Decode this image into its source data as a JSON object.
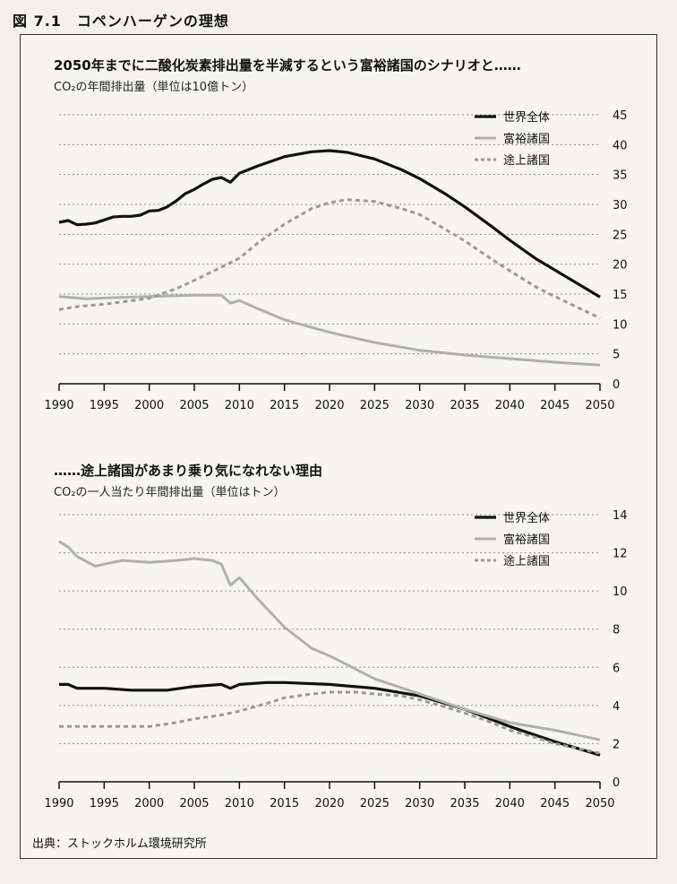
{
  "figure_title": "図 7.1　コペンハーゲンの理想",
  "source_note": "出典：ストックホルム環境研究所",
  "colors": {
    "world": "#111111",
    "rich": "#b0b0b0",
    "developing": "#9a9a9a"
  },
  "chart_data": [
    {
      "type": "line",
      "title": "2050年までに二酸化炭素排出量を半減するという富裕諸国のシナリオと……",
      "subtitle": "CO₂の年間排出量（単位は10億トン）",
      "xlabel": "",
      "ylabel": "",
      "xlim": [
        1990,
        2050
      ],
      "ylim": [
        0,
        45
      ],
      "x_ticks": [
        "1990",
        "1995",
        "2000",
        "2005",
        "2010",
        "2015",
        "2020",
        "2025",
        "2030",
        "2035",
        "2040",
        "2045",
        "2050"
      ],
      "y_ticks": [
        "45",
        "40",
        "35",
        "30",
        "25",
        "20",
        "15",
        "10",
        "5",
        "0"
      ],
      "grid": true,
      "legend_position": "top-right",
      "series": [
        {
          "name": "世界全体",
          "style": "solid-bold",
          "points": [
            [
              1990,
              27
            ],
            [
              1991,
              27.3
            ],
            [
              1992,
              26.6
            ],
            [
              1993,
              26.7
            ],
            [
              1994,
              26.9
            ],
            [
              1995,
              27.4
            ],
            [
              1996,
              27.9
            ],
            [
              1997,
              28
            ],
            [
              1998,
              28
            ],
            [
              1999,
              28.2
            ],
            [
              2000,
              28.9
            ],
            [
              2001,
              29
            ],
            [
              2002,
              29.6
            ],
            [
              2003,
              30.6
            ],
            [
              2004,
              31.8
            ],
            [
              2005,
              32.5
            ],
            [
              2006,
              33.4
            ],
            [
              2007,
              34.2
            ],
            [
              2008,
              34.5
            ],
            [
              2009,
              33.7
            ],
            [
              2010,
              35.2
            ],
            [
              2012,
              36.4
            ],
            [
              2015,
              38
            ],
            [
              2018,
              38.8
            ],
            [
              2020,
              39
            ],
            [
              2022,
              38.7
            ],
            [
              2025,
              37.6
            ],
            [
              2028,
              35.8
            ],
            [
              2030,
              34.3
            ],
            [
              2033,
              31.6
            ],
            [
              2035,
              29.6
            ],
            [
              2038,
              26.3
            ],
            [
              2040,
              24
            ],
            [
              2043,
              20.8
            ],
            [
              2045,
              19
            ],
            [
              2048,
              16.3
            ],
            [
              2050,
              14.5
            ]
          ]
        },
        {
          "name": "富裕諸国",
          "style": "solid-gray",
          "points": [
            [
              1990,
              14.6
            ],
            [
              1993,
              14.2
            ],
            [
              1996,
              14.4
            ],
            [
              2000,
              14.6
            ],
            [
              2005,
              14.8
            ],
            [
              2008,
              14.8
            ],
            [
              2009,
              13.5
            ],
            [
              2010,
              13.9
            ],
            [
              2012,
              12.6
            ],
            [
              2015,
              10.7
            ],
            [
              2020,
              8.6
            ],
            [
              2025,
              6.9
            ],
            [
              2030,
              5.6
            ],
            [
              2035,
              4.8
            ],
            [
              2040,
              4.2
            ],
            [
              2045,
              3.6
            ],
            [
              2050,
              3.1
            ]
          ]
        },
        {
          "name": "途上諸国",
          "style": "dashed-gray",
          "points": [
            [
              1990,
              12.4
            ],
            [
              1992,
              12.9
            ],
            [
              1995,
              13.3
            ],
            [
              2000,
              14.3
            ],
            [
              2003,
              15.9
            ],
            [
              2005,
              17.3
            ],
            [
              2008,
              19.5
            ],
            [
              2010,
              21
            ],
            [
              2012,
              23.5
            ],
            [
              2015,
              26.7
            ],
            [
              2018,
              29.3
            ],
            [
              2020,
              30.3
            ],
            [
              2022,
              30.8
            ],
            [
              2025,
              30.5
            ],
            [
              2028,
              29.3
            ],
            [
              2030,
              28.3
            ],
            [
              2033,
              25.7
            ],
            [
              2035,
              23.9
            ],
            [
              2038,
              20.8
            ],
            [
              2040,
              18.9
            ],
            [
              2043,
              16.1
            ],
            [
              2045,
              14.6
            ],
            [
              2048,
              12.4
            ],
            [
              2050,
              11
            ]
          ]
        }
      ]
    },
    {
      "type": "line",
      "title": "……途上諸国があまり乗り気になれない理由",
      "subtitle": "CO₂の一人当たり年間排出量（単位はトン）",
      "xlabel": "",
      "ylabel": "",
      "xlim": [
        1990,
        2050
      ],
      "ylim": [
        0,
        14
      ],
      "x_ticks": [
        "1990",
        "1995",
        "2000",
        "2005",
        "2010",
        "2015",
        "2020",
        "2025",
        "2030",
        "2035",
        "2040",
        "2045",
        "2050"
      ],
      "y_ticks": [
        "14",
        "12",
        "10",
        "8",
        "6",
        "4",
        "2",
        "0"
      ],
      "grid": true,
      "legend_position": "top-right",
      "series": [
        {
          "name": "世界全体",
          "style": "solid-bold",
          "points": [
            [
              1990,
              5.1
            ],
            [
              1991,
              5.1
            ],
            [
              1992,
              4.9
            ],
            [
              1995,
              4.9
            ],
            [
              1998,
              4.8
            ],
            [
              2000,
              4.8
            ],
            [
              2002,
              4.8
            ],
            [
              2005,
              5
            ],
            [
              2008,
              5.1
            ],
            [
              2009,
              4.9
            ],
            [
              2010,
              5.1
            ],
            [
              2013,
              5.2
            ],
            [
              2015,
              5.2
            ],
            [
              2020,
              5.1
            ],
            [
              2025,
              4.9
            ],
            [
              2030,
              4.5
            ],
            [
              2035,
              3.8
            ],
            [
              2040,
              2.9
            ],
            [
              2045,
              2.1
            ],
            [
              2050,
              1.4
            ]
          ]
        },
        {
          "name": "富裕諸国",
          "style": "solid-gray",
          "points": [
            [
              1990,
              12.6
            ],
            [
              1991,
              12.3
            ],
            [
              1992,
              11.8
            ],
            [
              1994,
              11.3
            ],
            [
              1995,
              11.4
            ],
            [
              1997,
              11.6
            ],
            [
              2000,
              11.5
            ],
            [
              2003,
              11.6
            ],
            [
              2005,
              11.7
            ],
            [
              2007,
              11.6
            ],
            [
              2008,
              11.4
            ],
            [
              2009,
              10.3
            ],
            [
              2010,
              10.7
            ],
            [
              2012,
              9.6
            ],
            [
              2015,
              8.1
            ],
            [
              2018,
              7
            ],
            [
              2020,
              6.6
            ],
            [
              2025,
              5.4
            ],
            [
              2030,
              4.6
            ],
            [
              2035,
              3.8
            ],
            [
              2040,
              3.1
            ],
            [
              2045,
              2.7
            ],
            [
              2050,
              2.2
            ]
          ]
        },
        {
          "name": "途上諸国",
          "style": "dashed-gray",
          "points": [
            [
              1990,
              2.9
            ],
            [
              1995,
              2.9
            ],
            [
              2000,
              2.9
            ],
            [
              2003,
              3.1
            ],
            [
              2005,
              3.3
            ],
            [
              2008,
              3.5
            ],
            [
              2010,
              3.7
            ],
            [
              2013,
              4.1
            ],
            [
              2015,
              4.4
            ],
            [
              2018,
              4.6
            ],
            [
              2020,
              4.7
            ],
            [
              2023,
              4.7
            ],
            [
              2025,
              4.6
            ],
            [
              2028,
              4.5
            ],
            [
              2030,
              4.3
            ],
            [
              2033,
              3.9
            ],
            [
              2035,
              3.6
            ],
            [
              2038,
              3.1
            ],
            [
              2040,
              2.7
            ],
            [
              2043,
              2.3
            ],
            [
              2045,
              2
            ],
            [
              2048,
              1.7
            ],
            [
              2050,
              1.5
            ]
          ]
        }
      ]
    }
  ]
}
